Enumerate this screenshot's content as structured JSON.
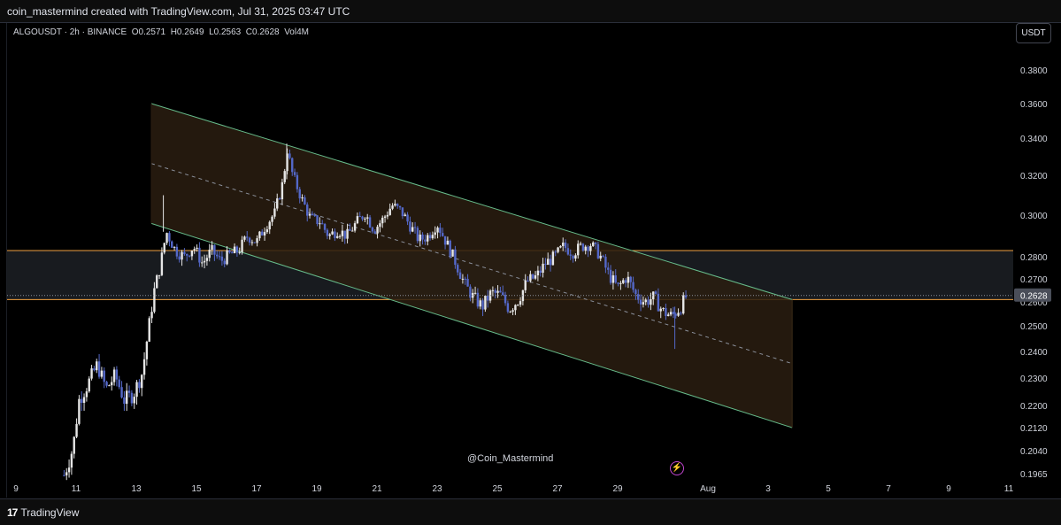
{
  "header": {
    "credit": "coin_mastermind created with TradingView.com, Jul 31, 2025 03:47 UTC"
  },
  "symbol_bar": {
    "symbol": "ALGOUSDT · 2h · BINANCE",
    "o_label": "O",
    "o": "0.2571",
    "h_label": "H",
    "h": "0.2649",
    "l_label": "L",
    "l": "0.2563",
    "c_label": "C",
    "c": "0.2628",
    "vol_label": "Vol",
    "vol": "4M"
  },
  "currency_button": "USDT",
  "watermark": "@Coin_Mastermind",
  "footer": {
    "brand": "TradingView",
    "logo_glyph": "17"
  },
  "colors": {
    "bull": "#e6e6e6",
    "bear": "#5468c9",
    "channel_line": "#66bb8a",
    "channel_fill": "#2a1d10",
    "zone_line": "#f0a040",
    "zone_fill": "#181b1f",
    "last_price_bg": "#4a4e59"
  },
  "chart_data": {
    "type": "candlestick",
    "symbol": "ALGOUSDT",
    "interval": "2h",
    "exchange": "BINANCE",
    "y_ticks": [
      "0.3800",
      "0.3600",
      "0.3400",
      "0.3200",
      "0.3000",
      "0.2800",
      "0.2700",
      "0.2600",
      "0.2500",
      "0.2400",
      "0.2300",
      "0.2200",
      "0.2120",
      "0.2040",
      "0.1965"
    ],
    "x_ticks": [
      "9",
      "11",
      "13",
      "15",
      "17",
      "19",
      "21",
      "23",
      "25",
      "27",
      "29",
      "Aug",
      "3",
      "5",
      "7",
      "9",
      "11"
    ],
    "last_price": "0.2628",
    "close_path": [
      [
        10.6,
        0.196
      ],
      [
        10.9,
        0.205
      ],
      [
        11.1,
        0.222
      ],
      [
        11.4,
        0.228
      ],
      [
        11.7,
        0.235
      ],
      [
        12.0,
        0.226
      ],
      [
        12.3,
        0.231
      ],
      [
        12.6,
        0.222
      ],
      [
        12.9,
        0.224
      ],
      [
        13.2,
        0.232
      ],
      [
        13.4,
        0.248
      ],
      [
        13.6,
        0.265
      ],
      [
        13.8,
        0.276
      ],
      [
        14.0,
        0.292
      ],
      [
        14.3,
        0.283
      ],
      [
        14.6,
        0.28
      ],
      [
        14.9,
        0.285
      ],
      [
        15.2,
        0.277
      ],
      [
        15.5,
        0.283
      ],
      [
        15.8,
        0.278
      ],
      [
        16.1,
        0.281
      ],
      [
        16.4,
        0.283
      ],
      [
        16.7,
        0.29
      ],
      [
        17.0,
        0.287
      ],
      [
        17.3,
        0.295
      ],
      [
        17.6,
        0.301
      ],
      [
        17.9,
        0.318
      ],
      [
        18.0,
        0.335
      ],
      [
        18.2,
        0.32
      ],
      [
        18.5,
        0.308
      ],
      [
        18.8,
        0.298
      ],
      [
        19.1,
        0.297
      ],
      [
        19.4,
        0.29
      ],
      [
        19.7,
        0.293
      ],
      [
        20.0,
        0.29
      ],
      [
        20.3,
        0.296
      ],
      [
        20.6,
        0.301
      ],
      [
        20.9,
        0.293
      ],
      [
        21.2,
        0.298
      ],
      [
        21.5,
        0.305
      ],
      [
        21.8,
        0.302
      ],
      [
        22.1,
        0.295
      ],
      [
        22.4,
        0.288
      ],
      [
        22.7,
        0.29
      ],
      [
        23.0,
        0.296
      ],
      [
        23.3,
        0.287
      ],
      [
        23.6,
        0.278
      ],
      [
        23.9,
        0.268
      ],
      [
        24.2,
        0.262
      ],
      [
        24.5,
        0.258
      ],
      [
        24.8,
        0.264
      ],
      [
        25.1,
        0.263
      ],
      [
        25.4,
        0.257
      ],
      [
        25.7,
        0.261
      ],
      [
        26.0,
        0.269
      ],
      [
        26.3,
        0.271
      ],
      [
        26.6,
        0.277
      ],
      [
        26.9,
        0.28
      ],
      [
        27.2,
        0.285
      ],
      [
        27.5,
        0.282
      ],
      [
        27.8,
        0.285
      ],
      [
        28.1,
        0.286
      ],
      [
        28.4,
        0.281
      ],
      [
        28.7,
        0.272
      ],
      [
        29.0,
        0.266
      ],
      [
        29.3,
        0.271
      ],
      [
        29.6,
        0.263
      ],
      [
        29.9,
        0.26
      ],
      [
        30.2,
        0.262
      ],
      [
        30.5,
        0.256
      ],
      [
        30.8,
        0.254
      ],
      [
        31.1,
        0.258
      ],
      [
        31.3,
        0.263
      ]
    ],
    "channel": {
      "upper_start": [
        13.5,
        0.36
      ],
      "upper_end": [
        34.8,
        0.261
      ],
      "lower_start": [
        13.5,
        0.296
      ],
      "lower_end": [
        34.8,
        0.212
      ]
    },
    "horizontal_levels": [
      0.283,
      0.261
    ]
  }
}
